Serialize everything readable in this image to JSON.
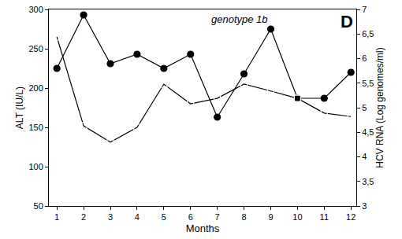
{
  "chart_data": {
    "type": "line",
    "annotations": [
      "genotype 1b",
      "D"
    ],
    "x_label": "Months",
    "y_label": "ALT (IU/L)",
    "y2_label": "HCV RNA (Log genomes/ml)",
    "x": [
      1,
      2,
      3,
      4,
      5,
      6,
      7,
      8,
      9,
      10,
      11,
      12
    ],
    "xlim": [
      0.7,
      12.2
    ],
    "xticks": [
      1,
      2,
      3,
      4,
      5,
      6,
      7,
      8,
      9,
      10,
      11,
      12
    ],
    "ylim": [
      50,
      300
    ],
    "yticks": [
      50,
      100,
      150,
      200,
      250,
      300
    ],
    "y2lim": [
      3,
      7
    ],
    "y2ticks": [
      3,
      {
        "value": 3.5,
        "label": "3,5"
      },
      4,
      {
        "value": 4.5,
        "label": "4,5"
      },
      5,
      {
        "value": 5.5,
        "label": "5,5"
      },
      6,
      {
        "value": 6.5,
        "label": "6,5"
      },
      7
    ],
    "grid": false,
    "series": [
      {
        "color": "#000000",
        "marker": "circle",
        "line_style": "solid",
        "values": [
          225,
          293,
          231,
          243,
          225,
          243,
          163,
          218,
          275,
          187,
          187,
          220
        ]
      },
      {
        "color": "#000000",
        "marker": "square-open",
        "line_style": "solid",
        "axis": "y2",
        "values": [
          6.44,
          4.63,
          4.3,
          4.6,
          5.48,
          5.08,
          5.19,
          5.48,
          5.34,
          5.19,
          4.89,
          4.82
        ]
      }
    ]
  }
}
